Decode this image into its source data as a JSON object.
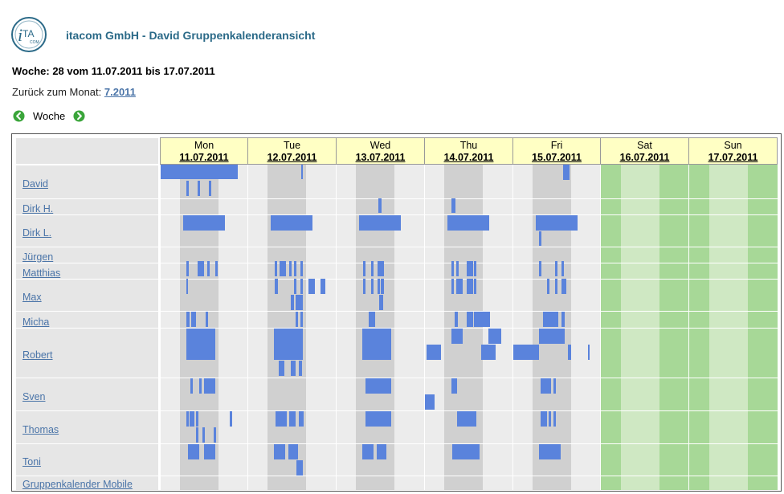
{
  "header": {
    "title": "itacom GmbH - David Gruppenkalenderansicht",
    "week_line": "Woche: 28 vom 11.07.2011 bis 17.07.2011",
    "back_prefix": "Zurück zum Monat: ",
    "back_link": "7.2011",
    "nav_label": "Woche",
    "logo_text": "iTA",
    "logo_sub": "COM"
  },
  "colors": {
    "event": "#5a83dc",
    "weekday_bg": "#ececec",
    "weekday_band": "#d0d0d0",
    "weekend_bg": "#a7d897",
    "weekend_band": "#cfe8c3",
    "header_bg": "#ffffc4",
    "link": "#4a74a8",
    "title": "#2b6a88"
  },
  "days": [
    {
      "name": "Mon",
      "date": "11.07.2011",
      "weekend": false
    },
    {
      "name": "Tue",
      "date": "12.07.2011",
      "weekend": false
    },
    {
      "name": "Wed",
      "date": "13.07.2011",
      "weekend": false
    },
    {
      "name": "Thu",
      "date": "14.07.2011",
      "weekend": false
    },
    {
      "name": "Fri",
      "date": "15.07.2011",
      "weekend": false
    },
    {
      "name": "Sat",
      "date": "16.07.2011",
      "weekend": true
    },
    {
      "name": "Sun",
      "date": "17.07.2011",
      "weekend": true
    }
  ],
  "people": [
    "David",
    "Dirk H.",
    "Dirk L.",
    "Jürgen",
    "Matthias",
    "Max",
    "Micha",
    "Robert",
    "Sven",
    "Thomas",
    "Toni"
  ],
  "footer_link": "Gruppenkalender Mobile"
}
